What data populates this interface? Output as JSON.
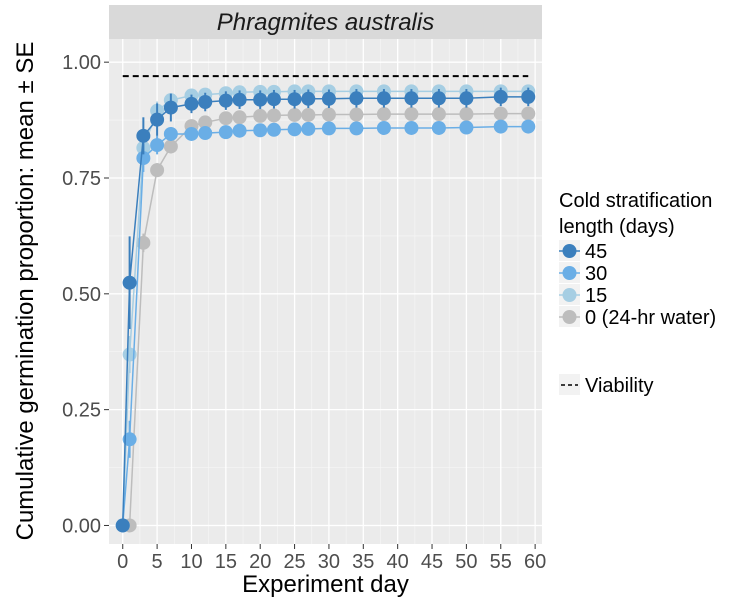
{
  "chart_data": {
    "type": "line",
    "title": "Phragmites australis",
    "xlabel": "Experiment day",
    "ylabel": "Cumulative germination proportion: mean ± SE",
    "xlim": [
      -2,
      61
    ],
    "ylim": [
      -0.04,
      1.05
    ],
    "x_ticks": [
      0,
      5,
      10,
      15,
      20,
      25,
      30,
      35,
      40,
      45,
      50,
      55,
      60
    ],
    "y_ticks": [
      0.0,
      0.25,
      0.5,
      0.75,
      1.0
    ],
    "y_tick_labels": [
      "0.00",
      "0.25",
      "0.50",
      "0.75",
      "1.00"
    ],
    "legend_title": "Cold stratification length (days)",
    "legend_title_lines": [
      "Cold stratification",
      "length (days)"
    ],
    "viability": {
      "label": "Viability",
      "value": 0.97,
      "x_range": [
        0,
        59
      ]
    },
    "series": [
      {
        "name": "0 (24-hr water)",
        "color": "#bdbdbd",
        "x": [
          1,
          3,
          5,
          7,
          10,
          12,
          15,
          17,
          20,
          22,
          25,
          27,
          30,
          34,
          38,
          42,
          46,
          50,
          55,
          59
        ],
        "values": [
          0.0,
          0.61,
          0.767,
          0.818,
          0.862,
          0.87,
          0.879,
          0.881,
          0.884,
          0.885,
          0.886,
          0.886,
          0.887,
          0.887,
          0.888,
          0.888,
          0.888,
          0.888,
          0.889,
          0.889
        ],
        "se": [
          0.0,
          0.02,
          0.015,
          0.015,
          0.01,
          0.01,
          0.01,
          0.01,
          0.01,
          0.01,
          0.01,
          0.01,
          0.01,
          0.01,
          0.01,
          0.01,
          0.01,
          0.01,
          0.01,
          0.01
        ]
      },
      {
        "name": "15",
        "color": "#a6cee3",
        "x": [
          0,
          1,
          3,
          5,
          7,
          10,
          12,
          15,
          17,
          20,
          22,
          25,
          27,
          30,
          34,
          38,
          42,
          46,
          50,
          55,
          59
        ],
        "values": [
          0.0,
          0.369,
          0.815,
          0.895,
          0.918,
          0.928,
          0.93,
          0.933,
          0.935,
          0.936,
          0.936,
          0.937,
          0.937,
          0.937,
          0.937,
          0.937,
          0.937,
          0.937,
          0.937,
          0.937,
          0.937
        ],
        "se": [
          0.0,
          0.04,
          0.025,
          0.02,
          0.015,
          0.012,
          0.012,
          0.012,
          0.012,
          0.012,
          0.012,
          0.012,
          0.012,
          0.012,
          0.012,
          0.012,
          0.012,
          0.012,
          0.012,
          0.012,
          0.012
        ]
      },
      {
        "name": "30",
        "color": "#6aaee6",
        "x": [
          0,
          1,
          3,
          5,
          7,
          10,
          12,
          15,
          17,
          20,
          22,
          25,
          27,
          30,
          34,
          38,
          42,
          46,
          50,
          55,
          59
        ],
        "values": [
          0.0,
          0.186,
          0.793,
          0.821,
          0.845,
          0.845,
          0.847,
          0.849,
          0.852,
          0.853,
          0.854,
          0.855,
          0.856,
          0.857,
          0.857,
          0.858,
          0.858,
          0.858,
          0.859,
          0.861,
          0.861
        ],
        "se": [
          0.0,
          0.04,
          0.03,
          0.02,
          0.015,
          0.012,
          0.012,
          0.012,
          0.012,
          0.012,
          0.012,
          0.012,
          0.012,
          0.012,
          0.012,
          0.012,
          0.012,
          0.012,
          0.012,
          0.012,
          0.012
        ]
      },
      {
        "name": "45",
        "color": "#3b7fbd",
        "x": [
          0,
          1,
          3,
          5,
          7,
          10,
          12,
          15,
          17,
          20,
          22,
          25,
          27,
          30,
          34,
          38,
          42,
          46,
          50,
          55,
          59
        ],
        "values": [
          0.0,
          0.524,
          0.841,
          0.876,
          0.902,
          0.91,
          0.914,
          0.917,
          0.919,
          0.919,
          0.92,
          0.92,
          0.921,
          0.921,
          0.922,
          0.922,
          0.922,
          0.922,
          0.922,
          0.925,
          0.925
        ],
        "se": [
          0.0,
          0.1,
          0.04,
          0.035,
          0.03,
          0.02,
          0.02,
          0.02,
          0.02,
          0.02,
          0.02,
          0.02,
          0.02,
          0.02,
          0.02,
          0.02,
          0.02,
          0.02,
          0.02,
          0.02,
          0.02
        ]
      }
    ],
    "legend_order": [
      "45",
      "30",
      "15",
      "0 (24-hr water)"
    ],
    "grid": true,
    "legend_position": "right"
  }
}
